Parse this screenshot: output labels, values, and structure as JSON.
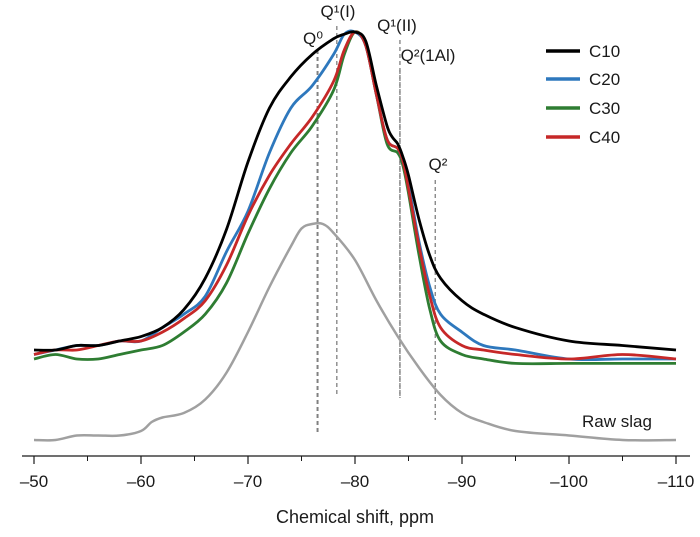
{
  "chart_data": {
    "type": "line",
    "title": "",
    "xlabel": "Chemical shift, ppm",
    "ylabel": "",
    "xlim": [
      -50,
      -110
    ],
    "x_ticks": [
      -50,
      -60,
      -70,
      -80,
      -90,
      -100,
      -110
    ],
    "x_tick_labels": [
      "–50",
      "–60",
      "–70",
      "–80",
      "–90",
      "–100",
      "–110"
    ],
    "ylim": [
      0,
      1.05
    ],
    "grid": false,
    "legend_position": "top-right",
    "series": [
      {
        "name": "C10",
        "color": "#000000",
        "x": [
          -50,
          -52,
          -54,
          -56,
          -58,
          -60,
          -62,
          -64,
          -66,
          -68,
          -70,
          -72,
          -74,
          -76,
          -78,
          -79,
          -80,
          -81,
          -82,
          -83,
          -83.5,
          -84,
          -84.5,
          -85,
          -86,
          -87,
          -88,
          -90,
          -92,
          -95,
          -100,
          -105,
          -110
        ],
        "y": [
          0.29,
          0.29,
          0.3,
          0.3,
          0.31,
          0.32,
          0.34,
          0.38,
          0.45,
          0.56,
          0.71,
          0.83,
          0.9,
          0.95,
          0.985,
          0.995,
          1.0,
          0.98,
          0.88,
          0.79,
          0.765,
          0.75,
          0.72,
          0.68,
          0.58,
          0.5,
          0.45,
          0.4,
          0.37,
          0.34,
          0.31,
          0.3,
          0.29
        ]
      },
      {
        "name": "C20",
        "color": "#2e78bd",
        "x": [
          -50,
          -52,
          -54,
          -56,
          -58,
          -60,
          -62,
          -64,
          -66,
          -68,
          -70,
          -72,
          -74,
          -76,
          -78,
          -79,
          -80,
          -81,
          -82,
          -83,
          -84,
          -84.5,
          -85,
          -86,
          -87,
          -88,
          -90,
          -92,
          -95,
          -100,
          -105,
          -110
        ],
        "y": [
          0.28,
          0.29,
          0.3,
          0.3,
          0.31,
          0.31,
          0.34,
          0.37,
          0.41,
          0.51,
          0.6,
          0.73,
          0.83,
          0.88,
          0.95,
          0.995,
          1.0,
          0.97,
          0.86,
          0.76,
          0.74,
          0.71,
          0.66,
          0.53,
          0.43,
          0.37,
          0.33,
          0.3,
          0.29,
          0.27,
          0.27,
          0.27
        ]
      },
      {
        "name": "C30",
        "color": "#2e7d32",
        "x": [
          -50,
          -52,
          -54,
          -56,
          -58,
          -60,
          -62,
          -64,
          -66,
          -68,
          -70,
          -72,
          -74,
          -76,
          -78,
          -79,
          -80,
          -81,
          -82,
          -83,
          -84,
          -84.5,
          -85,
          -86,
          -87,
          -88,
          -90,
          -92,
          -95,
          -100,
          -105,
          -110
        ],
        "y": [
          0.27,
          0.28,
          0.27,
          0.27,
          0.28,
          0.29,
          0.3,
          0.33,
          0.37,
          0.44,
          0.55,
          0.65,
          0.73,
          0.79,
          0.87,
          0.95,
          1.0,
          0.97,
          0.86,
          0.75,
          0.73,
          0.7,
          0.64,
          0.5,
          0.38,
          0.31,
          0.28,
          0.27,
          0.26,
          0.26,
          0.26,
          0.26
        ]
      },
      {
        "name": "C40",
        "color": "#c62828",
        "x": [
          -50,
          -52,
          -54,
          -56,
          -58,
          -60,
          -62,
          -64,
          -66,
          -68,
          -70,
          -72,
          -74,
          -76,
          -78,
          -79,
          -80,
          -81,
          -82,
          -83,
          -84,
          -84.5,
          -85,
          -86,
          -87,
          -88,
          -90,
          -92,
          -95,
          -100,
          -105,
          -110
        ],
        "y": [
          0.28,
          0.29,
          0.29,
          0.3,
          0.31,
          0.31,
          0.33,
          0.36,
          0.4,
          0.48,
          0.59,
          0.68,
          0.75,
          0.81,
          0.89,
          0.96,
          1.0,
          0.97,
          0.86,
          0.76,
          0.74,
          0.71,
          0.65,
          0.52,
          0.41,
          0.34,
          0.3,
          0.29,
          0.28,
          0.27,
          0.28,
          0.27
        ]
      },
      {
        "name": "Raw slag",
        "color": "#a0a0a0",
        "x": [
          -50,
          -52,
          -54,
          -56,
          -58,
          -60,
          -61,
          -62,
          -64,
          -66,
          -68,
          -70,
          -72,
          -74,
          -75,
          -76,
          -77,
          -78,
          -80,
          -82,
          -84,
          -86,
          -88,
          -90,
          -92,
          -95,
          -100,
          -105,
          -110
        ],
        "y": [
          0.02,
          0.02,
          0.03,
          0.03,
          0.03,
          0.04,
          0.06,
          0.07,
          0.08,
          0.11,
          0.17,
          0.26,
          0.36,
          0.45,
          0.49,
          0.5,
          0.5,
          0.48,
          0.42,
          0.33,
          0.25,
          0.18,
          0.12,
          0.08,
          0.06,
          0.04,
          0.03,
          0.02,
          0.02
        ]
      }
    ],
    "reference_lines": [
      {
        "label": "Q⁰",
        "ppm": -76.5
      },
      {
        "label": "Q¹(I)",
        "ppm": -78.3
      },
      {
        "label": "Q¹(II)",
        "ppm": -84.2
      },
      {
        "label": "Q²(1Al)",
        "ppm": -84.2
      },
      {
        "label": "Q²",
        "ppm": -87.5
      }
    ],
    "annotations": [
      {
        "text": "Q⁰",
        "near_ppm": -76.5
      },
      {
        "text": "Q¹(I)",
        "near_ppm": -78.3
      },
      {
        "text": "Q¹(II)",
        "near_ppm": -80.5
      },
      {
        "text": "Q²(1Al)",
        "near_ppm": -84.2
      },
      {
        "text": "Q²",
        "near_ppm": -87.5
      },
      {
        "text": "Raw slag",
        "near_ppm": -105
      }
    ]
  }
}
